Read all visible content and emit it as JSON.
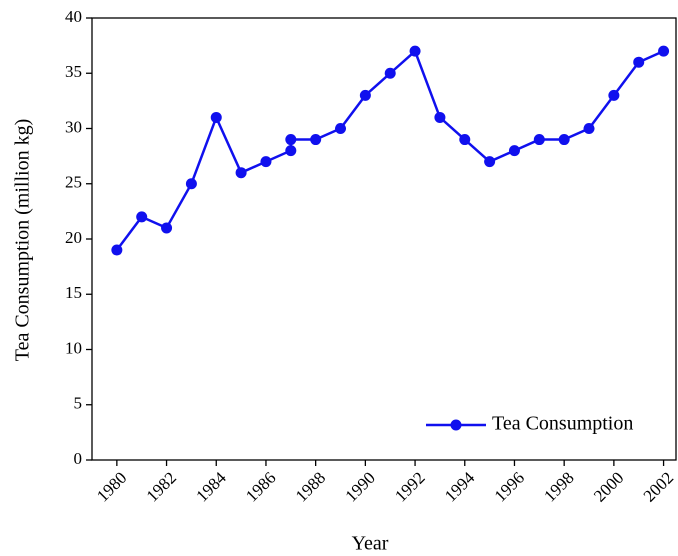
{
  "chart_data": {
    "type": "line",
    "x": [
      1980,
      1981,
      1982,
      1983,
      1984,
      1985,
      1986,
      1987,
      1987,
      1988,
      1989,
      1990,
      1991,
      1992,
      1993,
      1994,
      1995,
      1996,
      1997,
      1998,
      1999,
      2000,
      2001,
      2002
    ],
    "series": [
      {
        "name": "Tea Consumption",
        "color": "#1010ee",
        "values": [
          19,
          22,
          21,
          25,
          31,
          26,
          27,
          28,
          29,
          29,
          30,
          33,
          35,
          37,
          31,
          29,
          27,
          28,
          29,
          29,
          30,
          33,
          36,
          37
        ]
      }
    ],
    "xlabel": "Year",
    "ylabel": "Tea Consumption (million kg)",
    "xlim": [
      1979,
      2002.5
    ],
    "xticks": [
      1980,
      1982,
      1984,
      1986,
      1988,
      1990,
      1992,
      1994,
      1996,
      1998,
      2000,
      2002
    ],
    "ylim": [
      0,
      40
    ],
    "yticks": [
      0,
      5,
      10,
      15,
      20,
      25,
      30,
      35,
      40
    ],
    "grid": false,
    "legend": "lower right"
  }
}
